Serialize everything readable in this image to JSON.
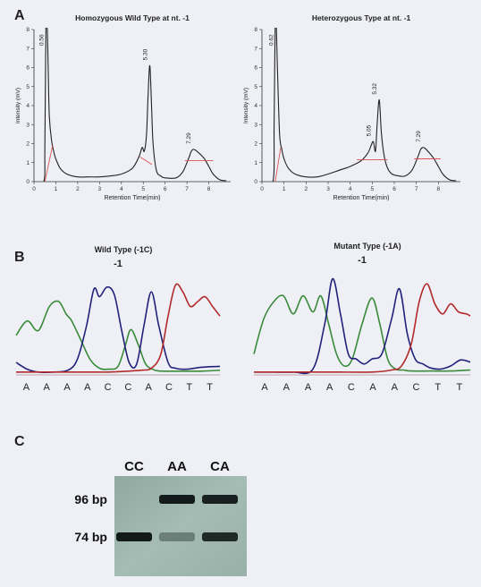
{
  "panels": {
    "a_label": "A",
    "b_label": "B",
    "c_label": "C"
  },
  "chart_data": [
    {
      "type": "line",
      "panel": "A",
      "title": "Homozygous Wild Type at nt. -1",
      "xlabel": "Retention Time(min)",
      "ylabel": "Intensity (mV)",
      "xlim": [
        0,
        9
      ],
      "ylim": [
        0,
        8
      ],
      "xticks": [
        "0",
        "1",
        "2",
        "3",
        "4",
        "5",
        "6",
        "7",
        "8"
      ],
      "yticks": [
        "0",
        "1",
        "2",
        "3",
        "4",
        "5",
        "6",
        "7",
        "8"
      ],
      "peaks": [
        {
          "label": "0.56",
          "x": 0.56,
          "y": 8
        },
        {
          "label": "5.30",
          "x": 5.3,
          "y": 6.1
        },
        {
          "label": "7.29",
          "x": 7.29,
          "y": 1.7
        }
      ],
      "series": [
        {
          "color": "#222222",
          "x": [
            0.0,
            0.45,
            0.5,
            0.55,
            0.6,
            0.65,
            0.7,
            0.8,
            0.9,
            1.0,
            1.2,
            1.5,
            2.0,
            2.5,
            3.0,
            3.5,
            4.0,
            4.5,
            4.8,
            4.95,
            5.05,
            5.15,
            5.22,
            5.3,
            5.38,
            5.45,
            5.6,
            5.8,
            6.0,
            6.5,
            6.8,
            7.0,
            7.1,
            7.2,
            7.29,
            7.4,
            7.6,
            7.8,
            8.0,
            8.2,
            8.5,
            8.8
          ],
          "y": [
            0.0,
            0.0,
            2,
            9,
            9,
            6,
            3.5,
            2.2,
            1.6,
            1.2,
            0.7,
            0.4,
            0.25,
            0.25,
            0.25,
            0.3,
            0.4,
            0.7,
            1.3,
            1.8,
            1.6,
            2.5,
            4.5,
            6.1,
            4.0,
            2.0,
            0.6,
            0.3,
            0.2,
            0.2,
            0.5,
            1.0,
            1.3,
            1.6,
            1.7,
            1.65,
            1.45,
            1.2,
            0.8,
            0.4,
            0.1,
            0.05
          ]
        },
        {
          "color": "#d9534f",
          "x": [
            0.5,
            0.85
          ],
          "y": [
            0.0,
            1.9
          ]
        },
        {
          "color": "#d9534f",
          "x": [
            4.85,
            5.4
          ],
          "y": [
            1.3,
            0.9
          ]
        },
        {
          "color": "#d9534f",
          "x": [
            6.9,
            8.2
          ],
          "y": [
            1.1,
            1.1
          ]
        }
      ]
    },
    {
      "type": "line",
      "panel": "A",
      "title": "Heterozygous Type at nt. -1",
      "xlabel": "Retention Time(min)",
      "ylabel": "Intensity (mV)",
      "xlim": [
        0,
        9
      ],
      "ylim": [
        0,
        8
      ],
      "xticks": [
        "0",
        "1",
        "2",
        "3",
        "4",
        "5",
        "6",
        "7",
        "8"
      ],
      "yticks": [
        "0",
        "1",
        "2",
        "3",
        "4",
        "5",
        "6",
        "7",
        "8"
      ],
      "peaks": [
        {
          "label": "0.62",
          "x": 0.62,
          "y": 8
        },
        {
          "label": "5.05",
          "x": 5.05,
          "y": 2.1
        },
        {
          "label": "5.32",
          "x": 5.32,
          "y": 4.3
        },
        {
          "label": "7.29",
          "x": 7.29,
          "y": 1.8
        }
      ],
      "series": [
        {
          "color": "#222222",
          "x": [
            0.0,
            0.5,
            0.55,
            0.6,
            0.65,
            0.7,
            0.8,
            0.9,
            1.0,
            1.2,
            1.5,
            2.0,
            2.5,
            3.0,
            3.5,
            4.0,
            4.5,
            4.8,
            4.95,
            5.05,
            5.15,
            5.22,
            5.32,
            5.42,
            5.55,
            5.7,
            5.9,
            6.2,
            6.5,
            6.8,
            7.0,
            7.1,
            7.2,
            7.29,
            7.4,
            7.6,
            7.8,
            8.0,
            8.2,
            8.5,
            8.8
          ],
          "y": [
            0.0,
            0.0,
            3,
            9,
            9,
            6,
            2.5,
            1.7,
            1.2,
            0.7,
            0.4,
            0.25,
            0.25,
            0.4,
            0.6,
            0.8,
            1.1,
            1.5,
            1.9,
            2.1,
            1.6,
            3.0,
            4.3,
            2.5,
            1.3,
            0.7,
            0.4,
            0.3,
            0.3,
            0.6,
            1.1,
            1.4,
            1.7,
            1.8,
            1.75,
            1.5,
            1.2,
            0.8,
            0.4,
            0.1,
            0.05
          ]
        },
        {
          "color": "#d9534f",
          "x": [
            0.6,
            0.85
          ],
          "y": [
            0.0,
            1.8
          ]
        },
        {
          "color": "#d9534f",
          "x": [
            4.3,
            5.7
          ],
          "y": [
            1.15,
            1.15
          ]
        },
        {
          "color": "#d9534f",
          "x": [
            6.9,
            8.1
          ],
          "y": [
            1.2,
            1.2
          ]
        }
      ]
    },
    {
      "type": "line",
      "panel": "B",
      "title": "Wild Type (-1C)",
      "marker": "-1",
      "bases": [
        "A",
        "A",
        "A",
        "A",
        "C",
        "C",
        "A",
        "C",
        "T",
        "T"
      ],
      "xlim": [
        0,
        11
      ],
      "ylim": [
        0,
        1
      ],
      "series": [
        {
          "color": "#3a8a3a",
          "x": [
            0,
            0.6,
            1.2,
            1.8,
            2.3,
            2.7,
            3.0,
            3.5,
            4.0,
            4.5,
            5.0,
            5.5,
            5.9,
            6.2,
            6.6,
            7.0,
            7.5,
            8.0,
            8.5,
            9,
            10,
            11
          ],
          "y": [
            0.4,
            0.55,
            0.45,
            0.7,
            0.75,
            0.62,
            0.55,
            0.35,
            0.15,
            0.06,
            0.05,
            0.08,
            0.3,
            0.46,
            0.3,
            0.1,
            0.04,
            0.03,
            0.03,
            0.03,
            0.03,
            0.04
          ]
        },
        {
          "color": "#22227a",
          "x": [
            0,
            0.6,
            1.2,
            2.0,
            2.8,
            3.3,
            3.8,
            4.2,
            4.5,
            4.9,
            5.3,
            5.7,
            6.1,
            6.5,
            6.9,
            7.3,
            7.7,
            8.2,
            8.6,
            9.2,
            10,
            11
          ],
          "y": [
            0.12,
            0.05,
            0.02,
            0.02,
            0.04,
            0.15,
            0.5,
            0.88,
            0.8,
            0.9,
            0.82,
            0.45,
            0.12,
            0.1,
            0.5,
            0.85,
            0.5,
            0.12,
            0.06,
            0.05,
            0.07,
            0.08
          ]
        },
        {
          "color": "#b22a2a",
          "x": [
            0,
            2,
            4,
            5,
            6,
            6.8,
            7.3,
            7.8,
            8.2,
            8.6,
            9.0,
            9.4,
            9.8,
            10.2,
            10.6,
            11
          ],
          "y": [
            0.02,
            0.02,
            0.02,
            0.02,
            0.03,
            0.04,
            0.06,
            0.2,
            0.6,
            0.92,
            0.85,
            0.7,
            0.75,
            0.8,
            0.7,
            0.6
          ]
        }
      ]
    },
    {
      "type": "line",
      "panel": "B",
      "title": "Mutant Type (-1A)",
      "marker": "-1",
      "bases": [
        "A",
        "A",
        "A",
        "A",
        "C",
        "A",
        "A",
        "C",
        "T",
        "T"
      ],
      "xlim": [
        0,
        11
      ],
      "ylim": [
        0,
        1
      ],
      "series": [
        {
          "color": "#3a8a3a",
          "x": [
            0,
            0.5,
            1.0,
            1.5,
            2.0,
            2.5,
            3.0,
            3.4,
            3.8,
            4.2,
            4.6,
            5.0,
            5.5,
            6.0,
            6.4,
            6.8,
            7.2,
            7.6,
            8,
            9,
            10,
            11
          ],
          "y": [
            0.2,
            0.55,
            0.72,
            0.78,
            0.6,
            0.78,
            0.62,
            0.78,
            0.5,
            0.2,
            0.08,
            0.15,
            0.5,
            0.76,
            0.5,
            0.15,
            0.05,
            0.04,
            0.03,
            0.03,
            0.03,
            0.04
          ]
        },
        {
          "color": "#22227a",
          "x": [
            0,
            1,
            2,
            3,
            3.6,
            4.0,
            4.4,
            4.8,
            5.2,
            5.6,
            6.0,
            6.5,
            7.0,
            7.4,
            7.8,
            8.2,
            8.6,
            9,
            9.5,
            10,
            10.5,
            11
          ],
          "y": [
            0.02,
            0.02,
            0.02,
            0.05,
            0.5,
            0.95,
            0.6,
            0.2,
            0.15,
            0.1,
            0.15,
            0.2,
            0.55,
            0.85,
            0.4,
            0.15,
            0.1,
            0.06,
            0.05,
            0.08,
            0.14,
            0.12
          ]
        },
        {
          "color": "#b22a2a",
          "x": [
            0,
            2,
            4,
            6,
            7,
            7.5,
            8,
            8.4,
            8.8,
            9.2,
            9.6,
            10,
            10.4,
            10.8,
            11
          ],
          "y": [
            0.02,
            0.02,
            0.02,
            0.02,
            0.04,
            0.08,
            0.3,
            0.72,
            0.9,
            0.7,
            0.6,
            0.7,
            0.62,
            0.6,
            0.58
          ]
        }
      ]
    },
    {
      "type": "other",
      "panel": "C",
      "lanes": [
        "CC",
        "AA",
        "CA"
      ],
      "band_labels": [
        "96 bp",
        "74 bp"
      ],
      "bands": [
        {
          "lane": "CC",
          "size": "74 bp",
          "intensity": 0.95
        },
        {
          "lane": "AA",
          "size": "96 bp",
          "intensity": 0.95
        },
        {
          "lane": "AA",
          "size": "74 bp",
          "intensity": 0.25
        },
        {
          "lane": "CA",
          "size": "96 bp",
          "intensity": 0.9
        },
        {
          "lane": "CA",
          "size": "74 bp",
          "intensity": 0.85
        }
      ]
    }
  ]
}
